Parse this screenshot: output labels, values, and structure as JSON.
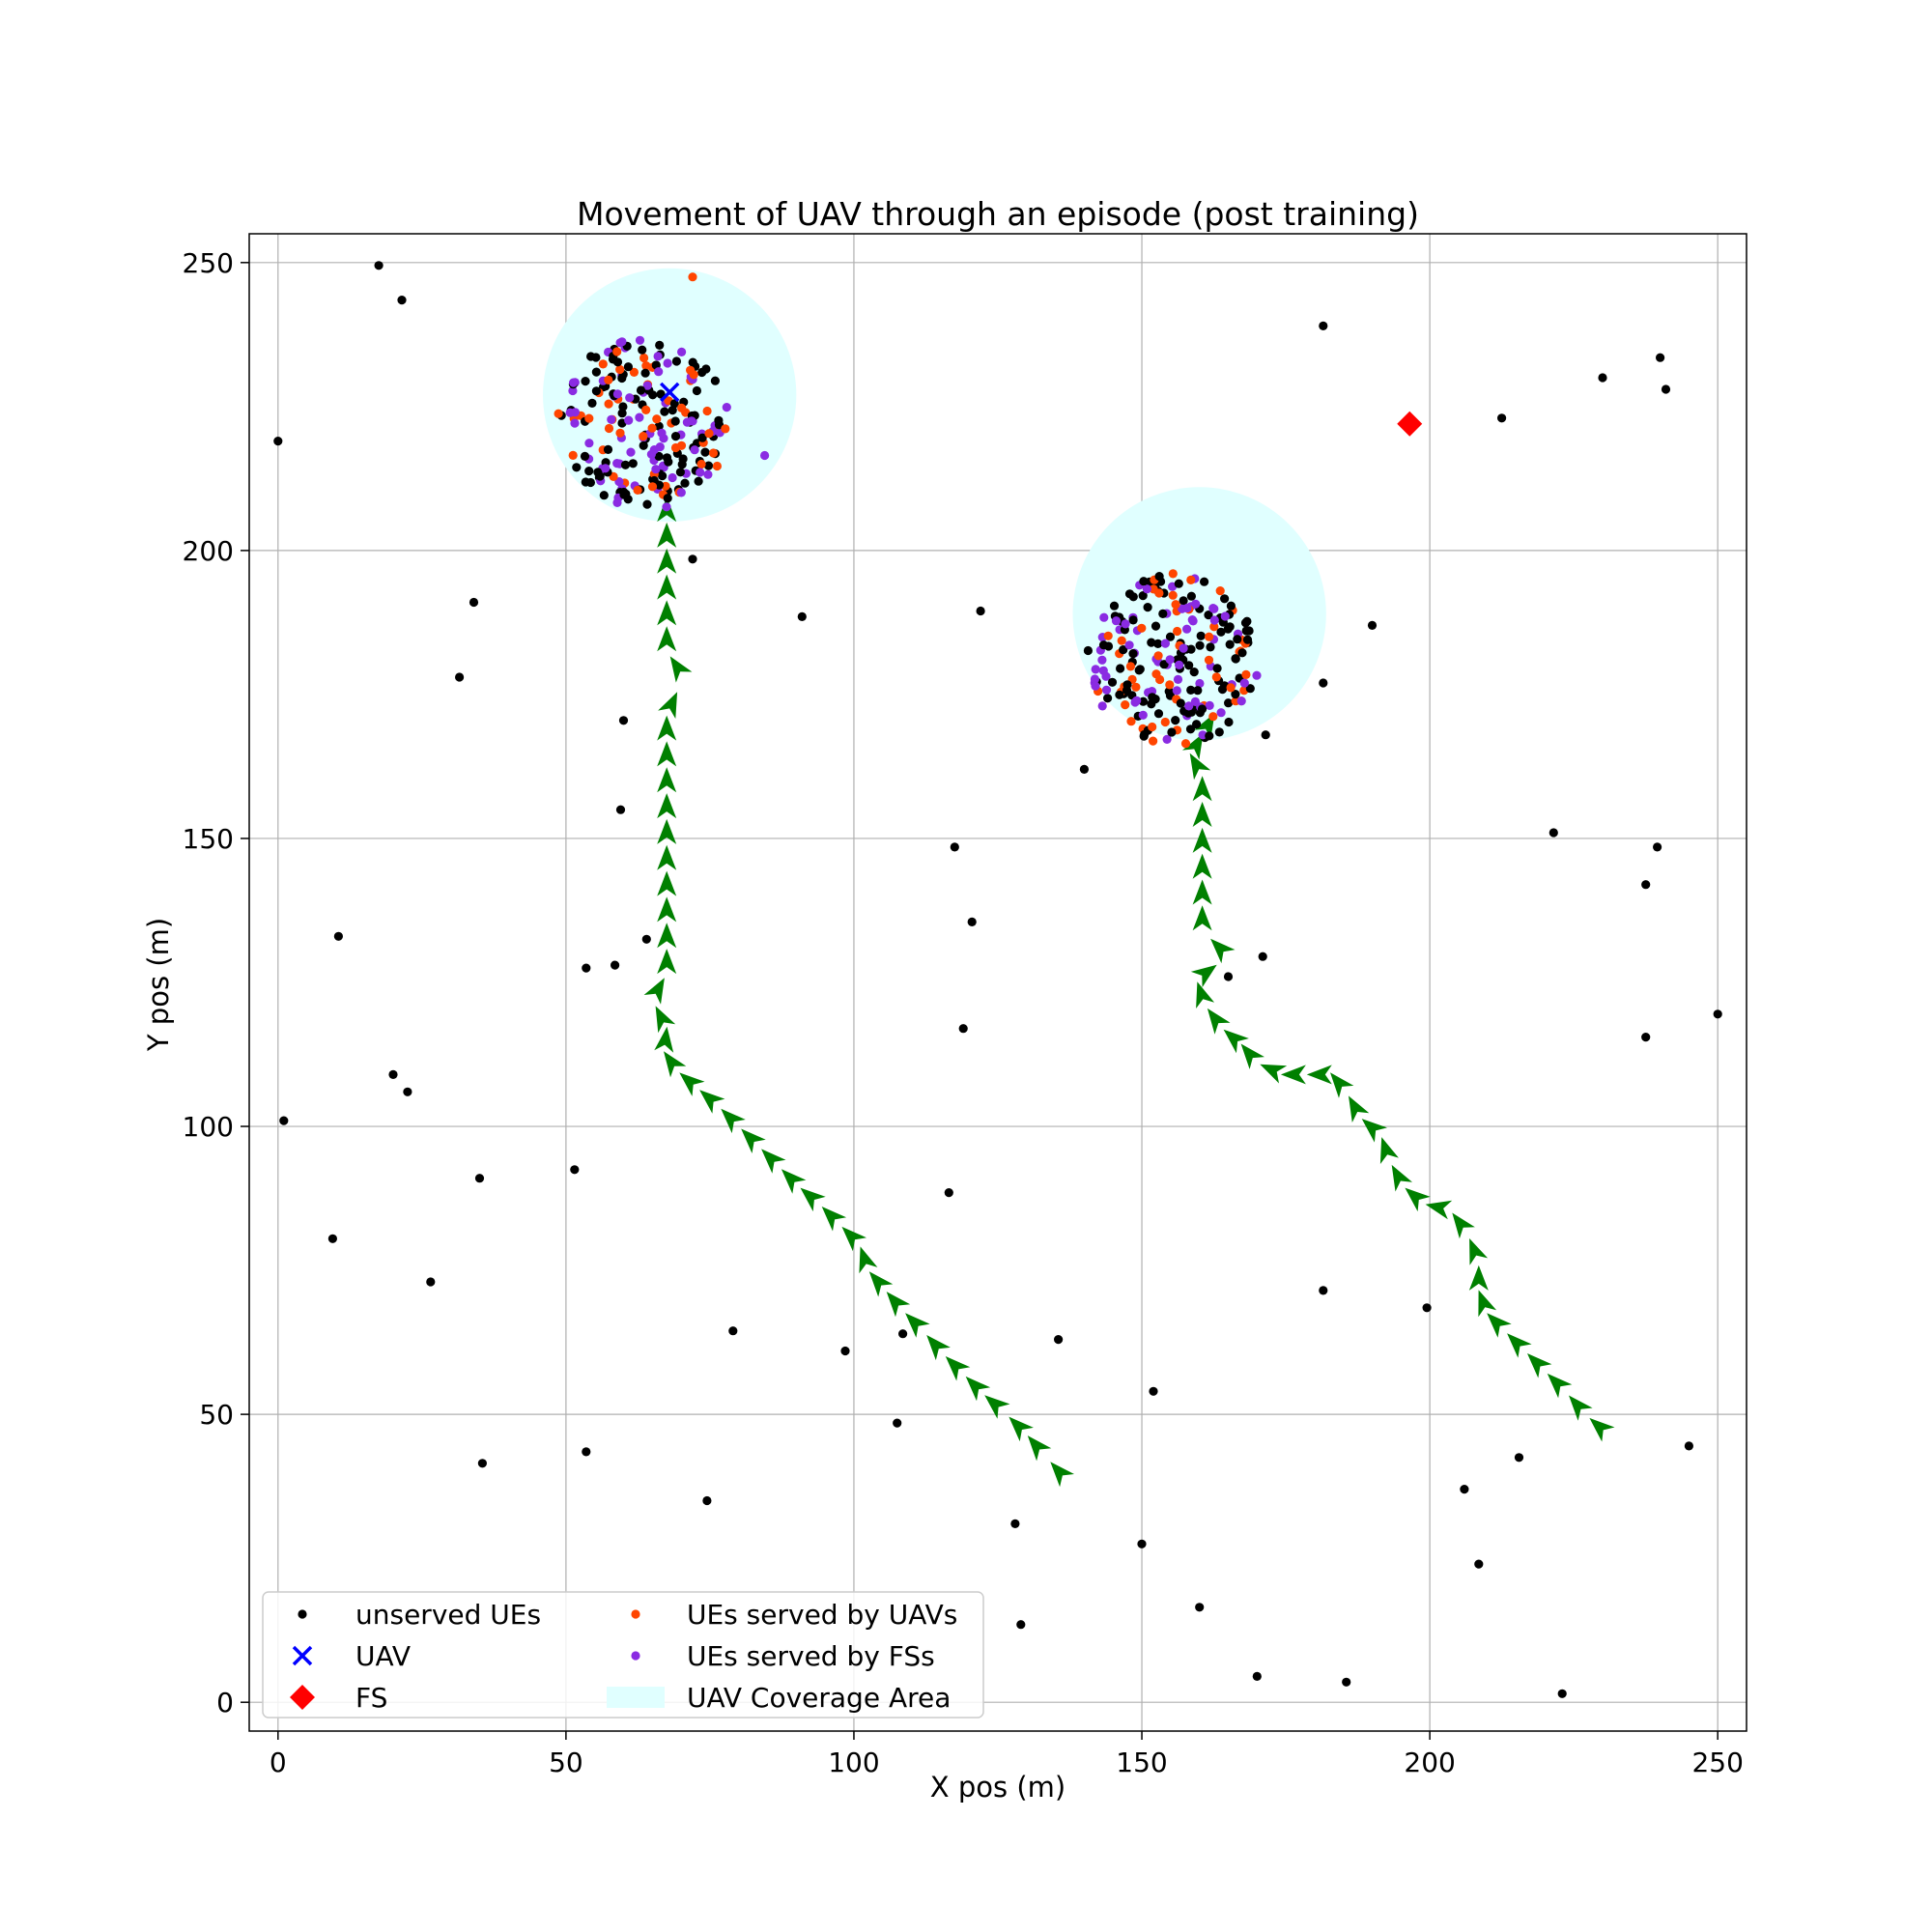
{
  "chart_data": {
    "type": "scatter",
    "title": "Movement of UAV through an episode (post training)",
    "xlabel": "X pos (m)",
    "ylabel": "Y pos (m)",
    "xlim": [
      -5,
      255
    ],
    "ylim": [
      -5,
      255
    ],
    "xticks": [
      0,
      50,
      100,
      150,
      200,
      250
    ],
    "yticks": [
      0,
      50,
      100,
      150,
      200,
      250
    ],
    "grid": true,
    "legend_position": "lower-left",
    "colors": {
      "unserved": "#000000",
      "uav": "#0000ff",
      "fs": "#ff0000",
      "served_uav": "#ff4500",
      "served_fs": "#8a2be2",
      "coverage": "#e0ffff",
      "trajectory": "#008000",
      "grid": "#b0b0b0"
    },
    "legend": [
      {
        "label": "unserved UEs",
        "marker": "dot",
        "color": "#000000"
      },
      {
        "label": "UEs served by UAVs",
        "marker": "dot",
        "color": "#ff4500"
      },
      {
        "label": "UAV",
        "marker": "x",
        "color": "#0000ff"
      },
      {
        "label": "UEs served by FSs",
        "marker": "dot",
        "color": "#8a2be2"
      },
      {
        "label": "FS",
        "marker": "diamond",
        "color": "#ff0000"
      },
      {
        "label": "UAV Coverage Area",
        "marker": "patch",
        "color": "#e0ffff"
      }
    ],
    "coverage_areas": [
      {
        "cx": 68,
        "cy": 227,
        "r": 22
      },
      {
        "cx": 160,
        "cy": 189,
        "r": 22
      }
    ],
    "fs": [
      {
        "x": 196.5,
        "y": 222
      }
    ],
    "uav": [
      {
        "x": 68,
        "y": 227.5
      }
    ],
    "clusters": [
      {
        "cx": 63.5,
        "cy": 222,
        "r": 15
      },
      {
        "cx": 155.5,
        "cy": 181,
        "r": 15
      }
    ],
    "trajectories": [
      [
        [
          137,
          38.5
        ],
        [
          133,
          43
        ],
        [
          130,
          46.5
        ],
        [
          126,
          50.5
        ],
        [
          122.5,
          53.5
        ],
        [
          119,
          57
        ],
        [
          115.5,
          60.5
        ],
        [
          112,
          64.5
        ],
        [
          108.5,
          68
        ],
        [
          105.5,
          71.5
        ],
        [
          102.5,
          75
        ],
        [
          101,
          79.5
        ],
        [
          97.5,
          83
        ],
        [
          94,
          86.5
        ],
        [
          90.5,
          89.5
        ],
        [
          87,
          93
        ],
        [
          83.5,
          96.5
        ],
        [
          80,
          100
        ],
        [
          76.5,
          103.5
        ],
        [
          73,
          106.5
        ],
        [
          69.5,
          109.5
        ],
        [
          67,
          113
        ],
        [
          67.5,
          117
        ],
        [
          65,
          122
        ],
        [
          67.5,
          126.5
        ],
        [
          67.5,
          131
        ],
        [
          67.5,
          135.5
        ],
        [
          67.5,
          140
        ],
        [
          67.5,
          144.5
        ],
        [
          67.5,
          149
        ],
        [
          67.5,
          153.5
        ],
        [
          67.5,
          158
        ],
        [
          67.5,
          162.5
        ],
        [
          67.5,
          167
        ],
        [
          67.5,
          171.5
        ],
        [
          70.5,
          178
        ],
        [
          67.5,
          182.5
        ],
        [
          67.5,
          187
        ],
        [
          67.5,
          191.5
        ],
        [
          67.5,
          196
        ],
        [
          67.5,
          200.5
        ],
        [
          67.5,
          205
        ]
      ],
      [
        [
          231,
          46.5
        ],
        [
          227,
          50
        ],
        [
          223.5,
          54
        ],
        [
          220,
          57.5
        ],
        [
          216.5,
          61
        ],
        [
          213,
          64.5
        ],
        [
          210,
          67.5
        ],
        [
          208.5,
          71.5
        ],
        [
          208.5,
          76.5
        ],
        [
          206.5,
          81.5
        ],
        [
          203.5,
          85.5
        ],
        [
          199,
          86.5
        ],
        [
          195.5,
          89.5
        ],
        [
          193,
          94
        ],
        [
          191.5,
          98.5
        ],
        [
          188,
          101.5
        ],
        [
          185.5,
          106
        ],
        [
          183,
          109
        ],
        [
          178.5,
          109
        ],
        [
          174.5,
          109
        ],
        [
          170,
          111
        ],
        [
          167.5,
          114
        ],
        [
          164,
          117
        ],
        [
          161,
          121
        ],
        [
          159.5,
          125.5
        ],
        [
          165,
          129.5
        ],
        [
          160.5,
          134
        ],
        [
          160.5,
          138.5
        ],
        [
          160.5,
          143
        ],
        [
          160.5,
          147.5
        ],
        [
          160.5,
          152
        ],
        [
          160.5,
          156.5
        ],
        [
          160.5,
          161
        ],
        [
          158.5,
          164.5
        ],
        [
          160.5,
          168
        ]
      ]
    ],
    "unserved_ues": [
      [
        17.5,
        249.5
      ],
      [
        21.5,
        243.5
      ],
      [
        0,
        219
      ],
      [
        181.5,
        239
      ],
      [
        240,
        233.5
      ],
      [
        230,
        230
      ],
      [
        241,
        228
      ],
      [
        212.5,
        223
      ],
      [
        72,
        198.5
      ],
      [
        34,
        191
      ],
      [
        91,
        188.5
      ],
      [
        122,
        189.5
      ],
      [
        190,
        187
      ],
      [
        31.5,
        178
      ],
      [
        181.5,
        177
      ],
      [
        171.5,
        168
      ],
      [
        60,
        170.5
      ],
      [
        140,
        162
      ],
      [
        59.5,
        155
      ],
      [
        221.5,
        151
      ],
      [
        117.5,
        148.5
      ],
      [
        239.5,
        148.5
      ],
      [
        237.5,
        142
      ],
      [
        10.5,
        133
      ],
      [
        120.5,
        135.5
      ],
      [
        64,
        132.5
      ],
      [
        53.5,
        127.5
      ],
      [
        58.5,
        128
      ],
      [
        171,
        129.5
      ],
      [
        165,
        126
      ],
      [
        250,
        119.5
      ],
      [
        119,
        117
      ],
      [
        237.5,
        115.5
      ],
      [
        20,
        109
      ],
      [
        22.5,
        106
      ],
      [
        1,
        101
      ],
      [
        51.5,
        92.5
      ],
      [
        35,
        91
      ],
      [
        116.5,
        88.5
      ],
      [
        9.5,
        80.5
      ],
      [
        26.5,
        73
      ],
      [
        181.5,
        71.5
      ],
      [
        199.5,
        68.5
      ],
      [
        79,
        64.5
      ],
      [
        108.5,
        64
      ],
      [
        135.5,
        63
      ],
      [
        98.5,
        61
      ],
      [
        152,
        54
      ],
      [
        107.5,
        48.5
      ],
      [
        245,
        44.5
      ],
      [
        215.5,
        42.5
      ],
      [
        53.5,
        43.5
      ],
      [
        35.5,
        41.5
      ],
      [
        206,
        37
      ],
      [
        74.5,
        35
      ],
      [
        128,
        31
      ],
      [
        150,
        27.5
      ],
      [
        208.5,
        24
      ],
      [
        160,
        16.5
      ],
      [
        129,
        13.5
      ],
      [
        170,
        4.5
      ],
      [
        185.5,
        3.5
      ],
      [
        223,
        1.5
      ]
    ],
    "served_uav_extra": [
      [
        72,
        247.5
      ]
    ],
    "served_fs_extra": [
      [
        84.5,
        216.5
      ]
    ]
  }
}
